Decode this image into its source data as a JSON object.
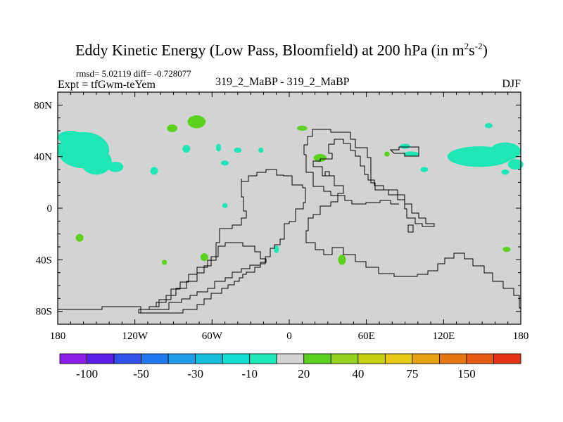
{
  "chart_data": {
    "type": "heatmap",
    "title": "Eddy Kinetic Energy (Low Pass, Bloomfield) at 200 hPa (in m",
    "title_unit_sup1": "2",
    "title_unit_mid": "s",
    "title_unit_sup2": "-2",
    "title_end": ")",
    "stats_text": "rmsd= 5.02119 diff= -0.728077",
    "left_label": "Expt = tfGwm-teYem",
    "center_label": "319_2_MaBP - 319_2_MaBP",
    "right_label": "DJF",
    "x_ticks": [
      {
        "value": -180,
        "label": "180"
      },
      {
        "value": -120,
        "label": "120W"
      },
      {
        "value": -60,
        "label": "60W"
      },
      {
        "value": 0,
        "label": "0"
      },
      {
        "value": 60,
        "label": "60E"
      },
      {
        "value": 120,
        "label": "120E"
      },
      {
        "value": 180,
        "label": "180"
      }
    ],
    "y_ticks": [
      {
        "value": 80,
        "label": "80N"
      },
      {
        "value": 40,
        "label": "40N"
      },
      {
        "value": 0,
        "label": "0"
      },
      {
        "value": -40,
        "label": "40S"
      },
      {
        "value": -80,
        "label": "80S"
      }
    ],
    "xlim": [
      -180,
      180
    ],
    "ylim": [
      -90,
      90
    ],
    "background_color": "#d3d3d3",
    "colorbar": {
      "colors": [
        "#8a1ee6",
        "#5a1ee6",
        "#3050e6",
        "#1e78f0",
        "#1e9ee6",
        "#14bedc",
        "#14dcd2",
        "#1ee6b4",
        "#d3d3d3",
        "#5ad21e",
        "#96d21e",
        "#c8d214",
        "#e6c814",
        "#e6a014",
        "#e67814",
        "#e65a14",
        "#e63214"
      ],
      "tick_labels": [
        "-100",
        "-50",
        "-30",
        "-10",
        "20",
        "40",
        "75",
        "150"
      ]
    },
    "anomaly_regions": [
      {
        "lon": -160,
        "lat": 45,
        "rx": 20,
        "ry": 14,
        "sign": "neg"
      },
      {
        "lon": -150,
        "lat": 36,
        "rx": 12,
        "ry": 10,
        "sign": "neg"
      },
      {
        "lon": -170,
        "lat": 55,
        "rx": 10,
        "ry": 5,
        "sign": "neg"
      },
      {
        "lon": -135,
        "lat": 32,
        "rx": 6,
        "ry": 4,
        "sign": "neg"
      },
      {
        "lon": -105,
        "lat": 29,
        "rx": 3,
        "ry": 3,
        "sign": "neg"
      },
      {
        "lon": -80,
        "lat": 46,
        "rx": 3,
        "ry": 3,
        "sign": "neg"
      },
      {
        "lon": -55,
        "lat": 47,
        "rx": 2,
        "ry": 3,
        "sign": "neg"
      },
      {
        "lon": -40,
        "lat": 45,
        "rx": 3,
        "ry": 2,
        "sign": "neg"
      },
      {
        "lon": -50,
        "lat": 35,
        "rx": 3,
        "ry": 2,
        "sign": "neg"
      },
      {
        "lon": -50,
        "lat": 2,
        "rx": 2,
        "ry": 2,
        "sign": "neg"
      },
      {
        "lon": -10,
        "lat": -32,
        "rx": 2,
        "ry": 3,
        "sign": "neg"
      },
      {
        "lon": 95,
        "lat": 42,
        "rx": 6,
        "ry": 2,
        "sign": "neg"
      },
      {
        "lon": 90,
        "lat": 48,
        "rx": 4,
        "ry": 2,
        "sign": "neg"
      },
      {
        "lon": 105,
        "lat": 30,
        "rx": 3,
        "ry": 2,
        "sign": "neg"
      },
      {
        "lon": 148,
        "lat": 40,
        "rx": 25,
        "ry": 8,
        "sign": "neg"
      },
      {
        "lon": 168,
        "lat": 44,
        "rx": 12,
        "ry": 7,
        "sign": "neg"
      },
      {
        "lon": 176,
        "lat": 34,
        "rx": 6,
        "ry": 4,
        "sign": "neg"
      },
      {
        "lon": 168,
        "lat": 28,
        "rx": 3,
        "ry": 2,
        "sign": "neg"
      },
      {
        "lon": 155,
        "lat": 64,
        "rx": 3,
        "ry": 2,
        "sign": "neg"
      },
      {
        "lon": -22,
        "lat": 45,
        "rx": 2,
        "ry": 2,
        "sign": "neg"
      },
      {
        "lon": -91,
        "lat": 62,
        "rx": 4,
        "ry": 3,
        "sign": "pos"
      },
      {
        "lon": -72,
        "lat": 67,
        "rx": 7,
        "ry": 5,
        "sign": "pos"
      },
      {
        "lon": 10,
        "lat": 62,
        "rx": 4,
        "ry": 2,
        "sign": "pos"
      },
      {
        "lon": 24,
        "lat": 39,
        "rx": 5,
        "ry": 3,
        "sign": "pos"
      },
      {
        "lon": -163,
        "lat": -23,
        "rx": 3,
        "ry": 3,
        "sign": "pos"
      },
      {
        "lon": -66,
        "lat": -38,
        "rx": 3,
        "ry": 3,
        "sign": "pos"
      },
      {
        "lon": -97,
        "lat": -42,
        "rx": 2,
        "ry": 2,
        "sign": "pos"
      },
      {
        "lon": 41,
        "lat": -40,
        "rx": 3,
        "ry": 4,
        "sign": "pos"
      },
      {
        "lon": 169,
        "lat": -32,
        "rx": 3,
        "ry": 2,
        "sign": "pos"
      },
      {
        "lon": 76,
        "lat": 42,
        "rx": 2,
        "ry": 2,
        "sign": "pos"
      }
    ]
  }
}
